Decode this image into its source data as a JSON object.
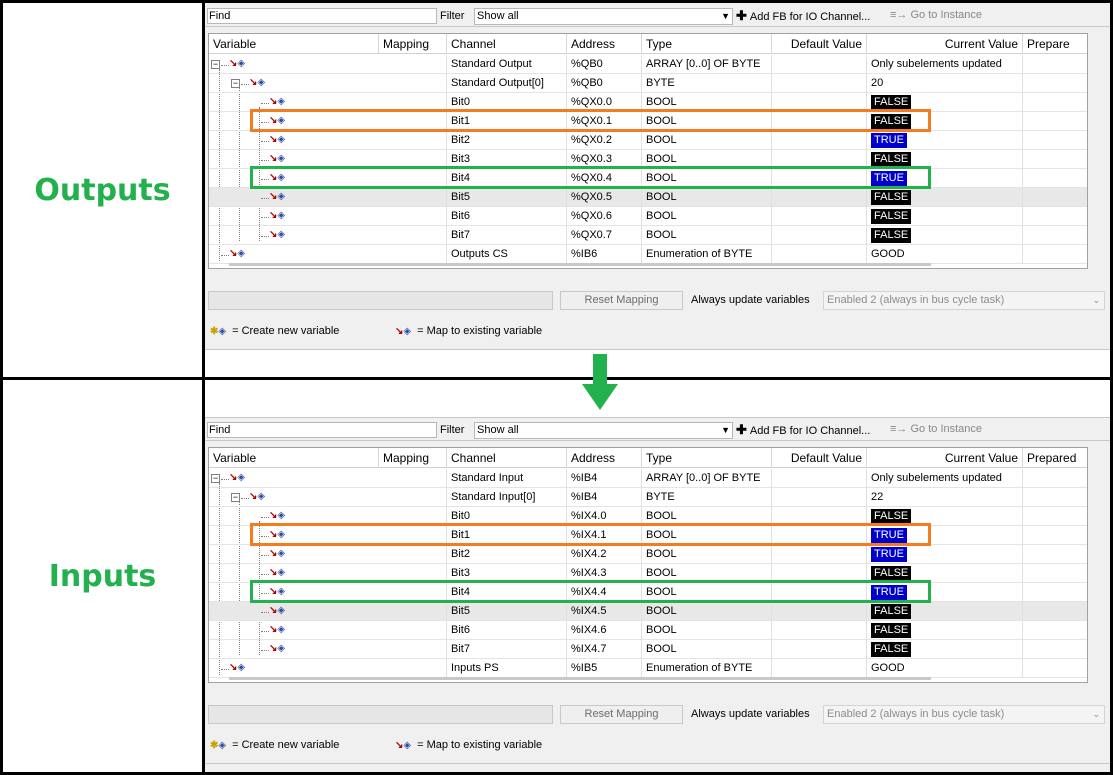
{
  "labels": {
    "outputs": "Outputs",
    "inputs": "Inputs"
  },
  "toolbar": {
    "find_label": "Find",
    "filter_label": "Filter",
    "filter_value": "Show all",
    "add_fb": "Add FB for IO Channel...",
    "goto_instance": "Go to Instance"
  },
  "columns": [
    "Variable",
    "Mapping",
    "Channel",
    "Address",
    "Type",
    "Default Value",
    "Current Value",
    "Prepare"
  ],
  "columns_in": [
    "Variable",
    "Mapping",
    "Channel",
    "Address",
    "Type",
    "Default Value",
    "Current Value",
    "Prepared"
  ],
  "outputs": {
    "rows": [
      {
        "channel": "Standard Output",
        "address": "%QB0",
        "type": "ARRAY [0..0] OF BYTE",
        "value": "Only subelements updated"
      },
      {
        "channel": "Standard Output[0]",
        "address": "%QB0",
        "type": "BYTE",
        "value": "20"
      },
      {
        "channel": "Bit0",
        "address": "%QX0.0",
        "type": "BOOL",
        "value": "FALSE"
      },
      {
        "channel": "Bit1",
        "address": "%QX0.1",
        "type": "BOOL",
        "value": "FALSE"
      },
      {
        "channel": "Bit2",
        "address": "%QX0.2",
        "type": "BOOL",
        "value": "TRUE"
      },
      {
        "channel": "Bit3",
        "address": "%QX0.3",
        "type": "BOOL",
        "value": "FALSE"
      },
      {
        "channel": "Bit4",
        "address": "%QX0.4",
        "type": "BOOL",
        "value": "TRUE"
      },
      {
        "channel": "Bit5",
        "address": "%QX0.5",
        "type": "BOOL",
        "value": "FALSE"
      },
      {
        "channel": "Bit6",
        "address": "%QX0.6",
        "type": "BOOL",
        "value": "FALSE"
      },
      {
        "channel": "Bit7",
        "address": "%QX0.7",
        "type": "BOOL",
        "value": "FALSE"
      },
      {
        "channel": "Outputs CS",
        "address": "%IB6",
        "type": "Enumeration of BYTE",
        "value": "GOOD"
      }
    ]
  },
  "inputs": {
    "rows": [
      {
        "channel": "Standard Input",
        "address": "%IB4",
        "type": "ARRAY [0..0] OF BYTE",
        "value": "Only subelements updated"
      },
      {
        "channel": "Standard Input[0]",
        "address": "%IB4",
        "type": "BYTE",
        "value": "22"
      },
      {
        "channel": "Bit0",
        "address": "%IX4.0",
        "type": "BOOL",
        "value": "FALSE"
      },
      {
        "channel": "Bit1",
        "address": "%IX4.1",
        "type": "BOOL",
        "value": "TRUE"
      },
      {
        "channel": "Bit2",
        "address": "%IX4.2",
        "type": "BOOL",
        "value": "TRUE"
      },
      {
        "channel": "Bit3",
        "address": "%IX4.3",
        "type": "BOOL",
        "value": "FALSE"
      },
      {
        "channel": "Bit4",
        "address": "%IX4.4",
        "type": "BOOL",
        "value": "TRUE"
      },
      {
        "channel": "Bit5",
        "address": "%IX4.5",
        "type": "BOOL",
        "value": "FALSE"
      },
      {
        "channel": "Bit6",
        "address": "%IX4.6",
        "type": "BOOL",
        "value": "FALSE"
      },
      {
        "channel": "Bit7",
        "address": "%IX4.7",
        "type": "BOOL",
        "value": "FALSE"
      },
      {
        "channel": "Inputs PS",
        "address": "%IB5",
        "type": "Enumeration of BYTE",
        "value": "GOOD"
      }
    ]
  },
  "bottom": {
    "reset_mapping": "Reset Mapping",
    "always_update": "Always update variables",
    "enabled_value": "Enabled 2 (always in bus cycle task)"
  },
  "legend": {
    "create_new": "= Create new variable",
    "map_existing": "= Map to existing variable"
  },
  "colors": {
    "label_green": "#22b14c",
    "highlight_orange": "#f47b20",
    "highlight_green": "#22b14c",
    "true_bg": "#0000cc",
    "false_bg": "#000000"
  },
  "icons": [
    "plus-icon",
    "goto-instance-icon",
    "map-existing-variable-icon",
    "create-new-variable-icon",
    "dropdown-caret-icon",
    "tree-expander-icon",
    "down-arrow-icon"
  ]
}
